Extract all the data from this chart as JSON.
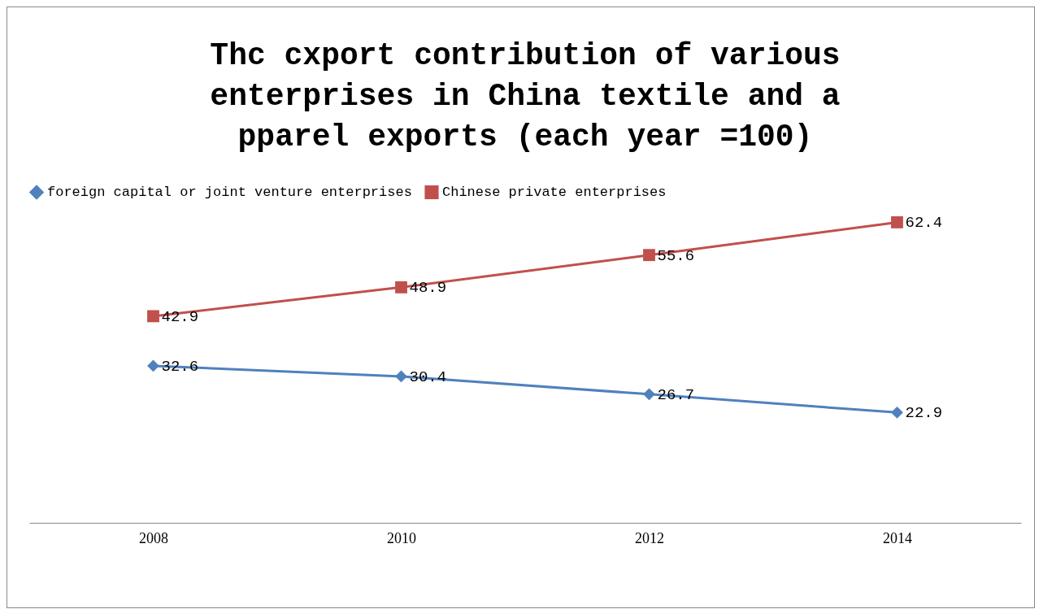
{
  "chart_data": {
    "type": "line",
    "title": "Thc cxport contribution of various enterprises in  China textile and a pparel exports (each year =100)",
    "categories": [
      "2008",
      "2010",
      "2012",
      "2014"
    ],
    "series": [
      {
        "name": "foreign capital or joint venture enterprises",
        "color": "#4f81bd",
        "marker": "diamond",
        "values": [
          32.6,
          30.4,
          26.7,
          22.9
        ]
      },
      {
        "name": "Chinese private enterprises",
        "color": "#c0504d",
        "marker": "square",
        "values": [
          42.9,
          48.9,
          55.6,
          62.4
        ]
      }
    ],
    "data_labels": true,
    "legend": "top",
    "grid": false
  }
}
